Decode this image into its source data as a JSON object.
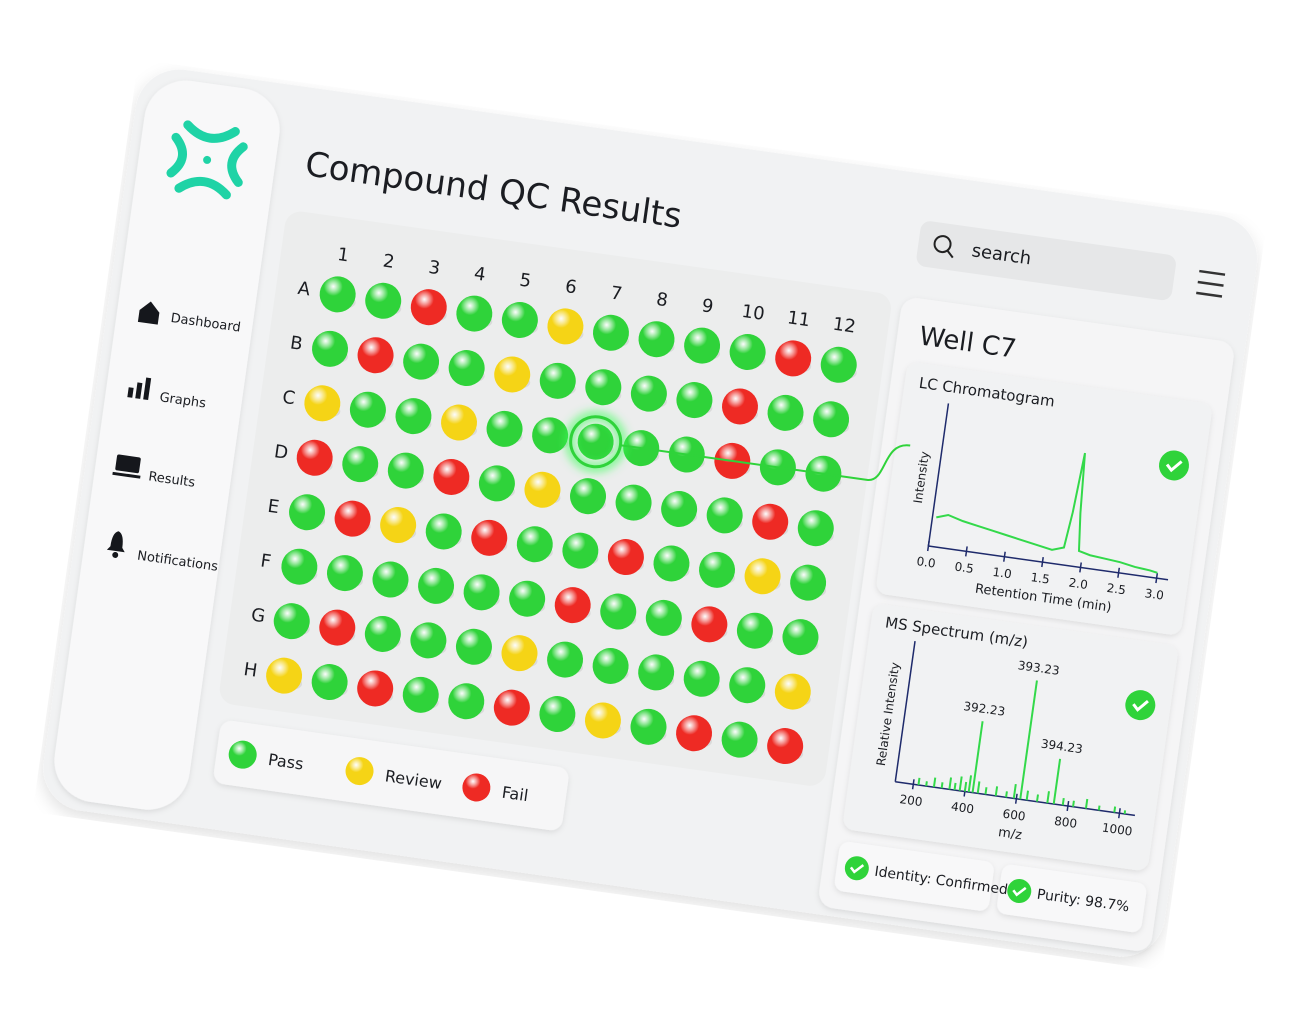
{
  "sidebar": {
    "nav": [
      "Dashboard",
      "Graphs",
      "Results",
      "Notifications"
    ]
  },
  "header": {
    "title": "Compound QC Results",
    "search_placeholder": "search"
  },
  "plate": {
    "columns": [
      "1",
      "2",
      "3",
      "4",
      "5",
      "6",
      "7",
      "8",
      "9",
      "10",
      "11",
      "12"
    ],
    "rows": [
      "A",
      "B",
      "C",
      "D",
      "E",
      "F",
      "G",
      "H"
    ],
    "selected_well": "C7",
    "wells": [
      [
        "Pass",
        "Pass",
        "Fail",
        "Pass",
        "Pass",
        "Review",
        "Pass",
        "Pass",
        "Pass",
        "Pass",
        "Fail",
        "Pass"
      ],
      [
        "Pass",
        "Fail",
        "Pass",
        "Pass",
        "Review",
        "Pass",
        "Pass",
        "Pass",
        "Pass",
        "Fail",
        "Pass",
        "Pass"
      ],
      [
        "Review",
        "Pass",
        "Pass",
        "Review",
        "Pass",
        "Pass",
        "Pass",
        "Pass",
        "Pass",
        "Fail",
        "Pass",
        "Pass"
      ],
      [
        "Fail",
        "Pass",
        "Pass",
        "Fail",
        "Pass",
        "Review",
        "Pass",
        "Pass",
        "Pass",
        "Pass",
        "Fail",
        "Pass"
      ],
      [
        "Pass",
        "Fail",
        "Review",
        "Pass",
        "Fail",
        "Pass",
        "Pass",
        "Fail",
        "Pass",
        "Pass",
        "Review",
        "Pass"
      ],
      [
        "Pass",
        "Pass",
        "Pass",
        "Pass",
        "Pass",
        "Pass",
        "Fail",
        "Pass",
        "Pass",
        "Fail",
        "Pass",
        "Pass"
      ],
      [
        "Pass",
        "Fail",
        "Pass",
        "Pass",
        "Pass",
        "Review",
        "Pass",
        "Pass",
        "Pass",
        "Pass",
        "Pass",
        "Review"
      ],
      [
        "Review",
        "Pass",
        "Fail",
        "Pass",
        "Pass",
        "Fail",
        "Pass",
        "Review",
        "Pass",
        "Fail",
        "Pass",
        "Fail"
      ]
    ]
  },
  "legend": [
    {
      "label": "Pass",
      "color": "#2fd33a"
    },
    {
      "label": "Review",
      "color": "#f5d416"
    },
    {
      "label": "Fail",
      "color": "#ee2a24"
    }
  ],
  "detail": {
    "title": "Well C7",
    "badges": [
      "Identity: Confirmed",
      "Purity: 98.7%"
    ]
  },
  "chart_data": [
    {
      "type": "line",
      "title": "LC Chromatogram",
      "x_label": "Retention Time (min)",
      "y_label": "Intensity",
      "x": [
        0.05,
        0.2,
        0.4,
        0.6,
        0.8,
        1.0,
        1.2,
        1.4,
        1.6,
        1.75,
        1.8,
        1.85,
        1.9,
        1.95,
        2.1,
        2.3,
        2.5,
        2.7,
        2.9,
        3.0
      ],
      "series": [
        {
          "color": "#33d94a",
          "values": [
            22,
            25,
            22,
            20,
            18,
            16,
            14,
            12,
            10,
            13,
            40,
            85,
            40,
            12,
            10,
            9,
            8,
            6,
            5,
            4
          ]
        }
      ],
      "xlim": [
        0,
        3.15
      ],
      "ylim": [
        0,
        100
      ],
      "xticks": [
        {
          "value": 0,
          "label": "0.0"
        },
        0.5,
        {
          "value": 1,
          "label": "1.0"
        },
        1.5,
        {
          "value": 2,
          "label": "2.0"
        },
        2.5,
        {
          "value": 3,
          "label": "3.0"
        }
      ]
    },
    {
      "type": "stem",
      "title": "MS Spectrum (m/z)",
      "x_label": "m/z",
      "y_label": "Relative Intensity",
      "x": [
        220,
        250,
        280,
        310,
        340,
        360,
        380,
        400,
        415,
        430,
        450,
        480,
        520,
        560,
        590,
        615,
        640,
        680,
        720,
        745,
        780,
        820,
        870,
        920,
        980,
        1020
      ],
      "series": [
        {
          "color": "#33d94a",
          "values": [
            6,
            4,
            8,
            5,
            10,
            6,
            12,
            8,
            14,
            60,
            10,
            6,
            8,
            5,
            12,
            100,
            8,
            6,
            10,
            38,
            6,
            5,
            8,
            4,
            5,
            3
          ]
        }
      ],
      "xlim": [
        130,
        1060
      ],
      "ylim": [
        0,
        110
      ],
      "xticks": [
        200,
        400,
        600,
        800,
        1000
      ],
      "annotations": [
        {
          "text": "392.23",
          "x": 430,
          "y": 60
        },
        {
          "text": "393.23",
          "x": 615,
          "y": 100
        },
        {
          "text": "394.23",
          "x": 745,
          "y": 38
        }
      ]
    }
  ]
}
